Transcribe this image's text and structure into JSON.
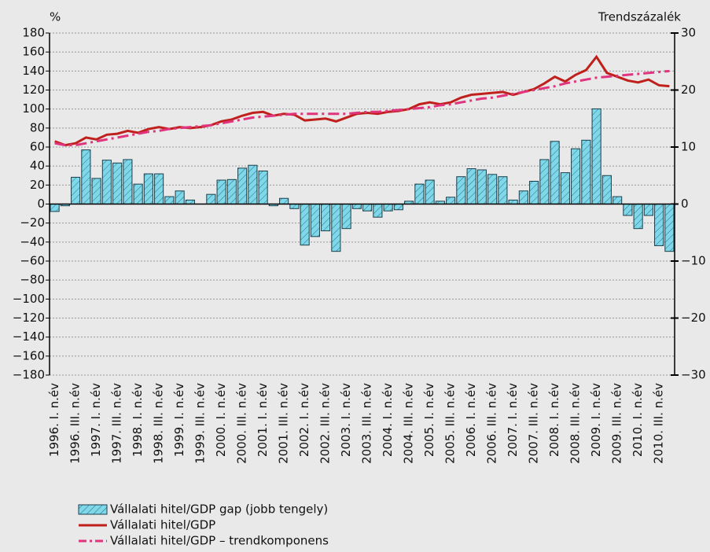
{
  "chart_data": {
    "type": "bar-line",
    "y_label": "%",
    "y2_label": "Trendszázalék",
    "categories": [
      "1996. I. n.év",
      null,
      "1996. III. n.év",
      null,
      "1997. I. n.év",
      null,
      "1997. III. n.év",
      null,
      "1998. I. n.év",
      null,
      "1998. III. n.év",
      null,
      "1999. I. n.év",
      null,
      "1999. III. n.év",
      null,
      "2000. I. n.év",
      null,
      "2000. III. n.év",
      null,
      "2001. I. n.év",
      null,
      "2001. III. n.év",
      null,
      "2002. I. n.év",
      null,
      "2002. III. n.év",
      null,
      "2003. I. n.év",
      null,
      "2003. III. n.év",
      null,
      "2004. I. n.év",
      null,
      "2004. III. n.év",
      null,
      "2005. I. n.év",
      null,
      "2005. III. n.év",
      null,
      "2006. I. n.év",
      null,
      "2006. III. n.év",
      null,
      "2007. I. n.év",
      null,
      "2007. III. n.év",
      null,
      "2008. I. n.év",
      null,
      "2008. III. n.év",
      null,
      "2009. I. n.év",
      null,
      "2009. III. n.év",
      null,
      "2010. I. n.év",
      null,
      "2010. III. n.év",
      null
    ],
    "series": [
      {
        "name": "Vállalati hitel/GDP gap (jobb tengely)",
        "type": "bar",
        "axis": "y2",
        "color": "#7fd8ea",
        "values": [
          -1.3,
          -0.3,
          4.7,
          9.5,
          4.5,
          7.7,
          7.2,
          7.8,
          3.5,
          5.3,
          5.3,
          1.3,
          2.3,
          0.7,
          0,
          1.7,
          4.2,
          4.3,
          6.3,
          6.8,
          5.8,
          -0.3,
          1.0,
          -0.8,
          -7.2,
          -5.7,
          -4.7,
          -8.3,
          -4.3,
          -0.8,
          -1.2,
          -2.3,
          -1.2,
          -1.0,
          0.5,
          3.5,
          4.2,
          0.5,
          1.2,
          4.8,
          6.2,
          6.0,
          5.2,
          4.8,
          0.7,
          2.3,
          4.0,
          7.8,
          11.0,
          5.5,
          9.7,
          11.2,
          16.7,
          5.0,
          1.3,
          -2.0,
          -4.3,
          -2.0,
          -7.3,
          -8.3
        ]
      },
      {
        "name": "Vállalati hitel/GDP",
        "type": "line",
        "color": "#c0201c",
        "values": [
          66,
          62,
          64,
          70,
          68,
          73,
          74,
          77,
          75,
          79,
          81,
          79,
          81,
          80,
          81,
          83,
          87,
          89,
          93,
          96,
          97,
          93,
          95,
          94,
          88,
          89,
          90,
          87,
          91,
          95,
          96,
          95,
          97,
          98,
          100,
          105,
          107,
          105,
          107,
          112,
          115,
          116,
          117,
          118,
          115,
          118,
          121,
          127,
          134,
          129,
          136,
          141,
          155,
          138,
          134,
          130,
          128,
          131,
          125,
          124
        ]
      },
      {
        "name": "Vállalati hitel/GDP – trendkomponens",
        "type": "line",
        "dash": "dashdot",
        "color": "#e0357e",
        "values": [
          64,
          62,
          62,
          64,
          66,
          68,
          70,
          72,
          74,
          76,
          77,
          79,
          80,
          81,
          82,
          83,
          85,
          87,
          89,
          91,
          92,
          93,
          94,
          95,
          95,
          95,
          95,
          95,
          95,
          96,
          97,
          97,
          98,
          99,
          100,
          101,
          102,
          104,
          105,
          107,
          109,
          111,
          112,
          114,
          116,
          118,
          120,
          122,
          124,
          127,
          129,
          131,
          133,
          134,
          135,
          136,
          137,
          138,
          139,
          140
        ]
      }
    ],
    "ylim": [
      -180,
      180
    ],
    "yticks": [
      {
        "value": -180,
        "label": "−180"
      },
      {
        "value": -160,
        "label": "−160"
      },
      {
        "value": -140,
        "label": "−140"
      },
      {
        "value": -120,
        "label": "−120"
      },
      {
        "value": -100,
        "label": "−100"
      },
      {
        "value": -80,
        "label": "−80"
      },
      {
        "value": -60,
        "label": "−60"
      },
      {
        "value": -40,
        "label": "−40"
      },
      {
        "value": -20,
        "label": "−20"
      },
      0,
      20,
      40,
      60,
      80,
      100,
      120,
      140,
      160,
      180
    ],
    "y2lim": [
      -30,
      30
    ],
    "y2ticks": [
      {
        "value": -30,
        "label": "−30"
      },
      {
        "value": -20,
        "label": "−20"
      },
      {
        "value": -10,
        "label": "−10"
      },
      0,
      10,
      20,
      30
    ],
    "grid": true
  }
}
